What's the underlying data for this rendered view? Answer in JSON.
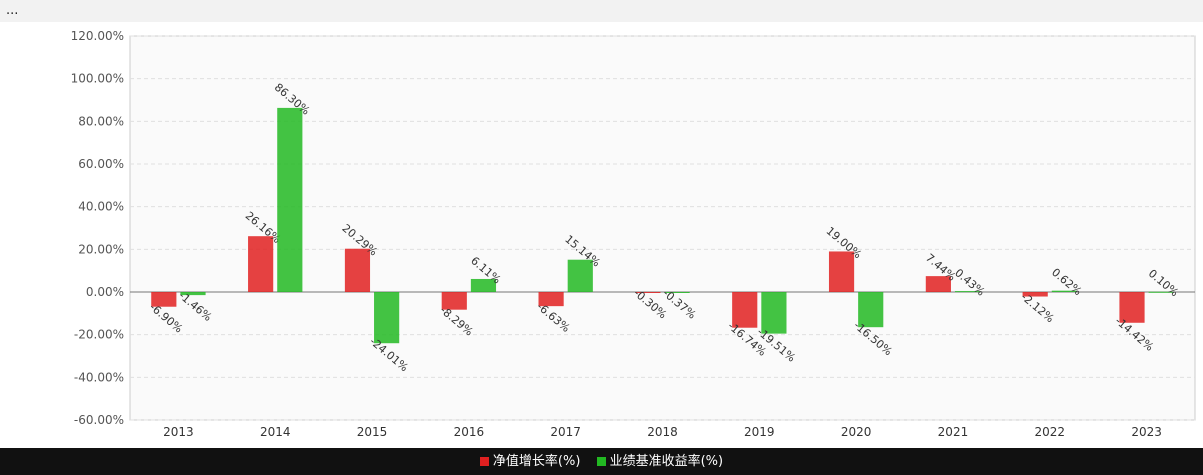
{
  "banner": {
    "text": "..."
  },
  "colors": {
    "nav": "#e02020",
    "benchmark": "#22b822",
    "grid": "#e0e0e0",
    "background": "#ffffff"
  },
  "chart_data": {
    "type": "bar",
    "title": "",
    "xlabel": "",
    "ylabel": "",
    "ylim": [
      -60,
      120
    ],
    "y_tick_labels": [
      "120.00%",
      "100.00%",
      "80.00%",
      "60.00%",
      "40.00%",
      "20.00%",
      "0.00%",
      "-20.00%",
      "-40.00%",
      "-60.00%"
    ],
    "categories": [
      "2013",
      "2014",
      "2015",
      "2016",
      "2017",
      "2018",
      "2019",
      "2020",
      "2021",
      "2022",
      "2023"
    ],
    "series": [
      {
        "name": "净值增长率(%)",
        "color": "#e02020",
        "values": [
          -6.9,
          26.16,
          20.29,
          -8.29,
          -6.63,
          -0.3,
          -16.74,
          19.0,
          7.44,
          -2.12,
          -14.42
        ]
      },
      {
        "name": "业绩基准收益率(%)",
        "color": "#22b822",
        "values": [
          -1.46,
          86.3,
          -24.01,
          6.11,
          15.14,
          -0.37,
          -19.51,
          -16.5,
          0.43,
          0.62,
          0.1
        ]
      }
    ]
  }
}
